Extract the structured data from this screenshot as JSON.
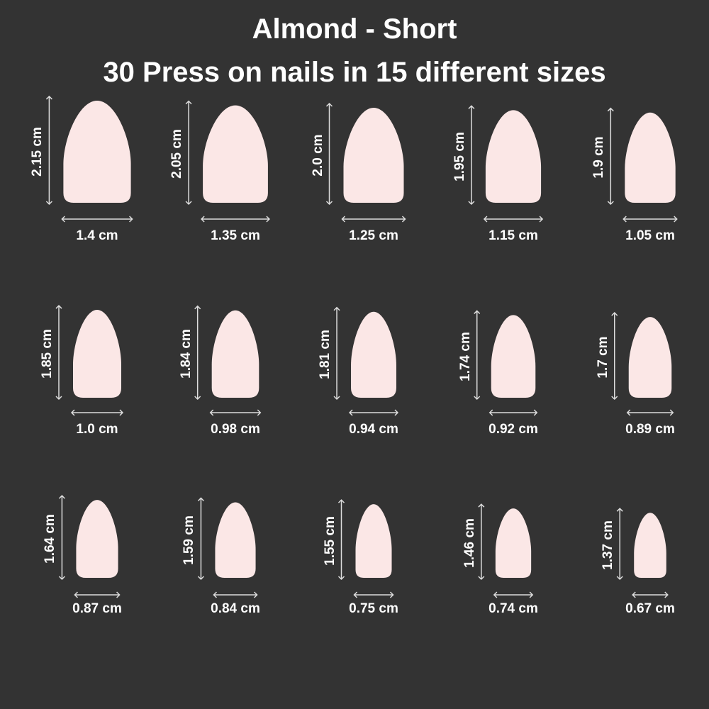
{
  "header": {
    "title": "Almond - Short",
    "subtitle": "30 Press on nails in 15 different sizes"
  },
  "colors": {
    "background": "#333333",
    "nail": "#fbe7e6",
    "arrow": "#dddddd",
    "text": "#ffffff"
  },
  "nails": [
    {
      "length_label": "2.15 cm",
      "width_label": "1.4 cm",
      "length": 2.15,
      "width": 1.4
    },
    {
      "length_label": "2.05 cm",
      "width_label": "1.35 cm",
      "length": 2.05,
      "width": 1.35
    },
    {
      "length_label": "2.0 cm",
      "width_label": "1.25 cm",
      "length": 2.0,
      "width": 1.25
    },
    {
      "length_label": "1.95 cm",
      "width_label": "1.15 cm",
      "length": 1.95,
      "width": 1.15
    },
    {
      "length_label": "1.9 cm",
      "width_label": "1.05 cm",
      "length": 1.9,
      "width": 1.05
    },
    {
      "length_label": "1.85 cm",
      "width_label": "1.0 cm",
      "length": 1.85,
      "width": 1.0
    },
    {
      "length_label": "1.84 cm",
      "width_label": "0.98 cm",
      "length": 1.84,
      "width": 0.98
    },
    {
      "length_label": "1.81 cm",
      "width_label": "0.94 cm",
      "length": 1.81,
      "width": 0.94
    },
    {
      "length_label": "1.74 cm",
      "width_label": "0.92 cm",
      "length": 1.74,
      "width": 0.92
    },
    {
      "length_label": "1.7 cm",
      "width_label": "0.89 cm",
      "length": 1.7,
      "width": 0.89
    },
    {
      "length_label": "1.64 cm",
      "width_label": "0.87 cm",
      "length": 1.64,
      "width": 0.87
    },
    {
      "length_label": "1.59 cm",
      "width_label": "0.84 cm",
      "length": 1.59,
      "width": 0.84
    },
    {
      "length_label": "1.55 cm",
      "width_label": "0.75 cm",
      "length": 1.55,
      "width": 0.75
    },
    {
      "length_label": "1.46 cm",
      "width_label": "0.74 cm",
      "length": 1.46,
      "width": 0.74
    },
    {
      "length_label": "1.37 cm",
      "width_label": "0.67 cm",
      "length": 1.37,
      "width": 0.67
    }
  ]
}
